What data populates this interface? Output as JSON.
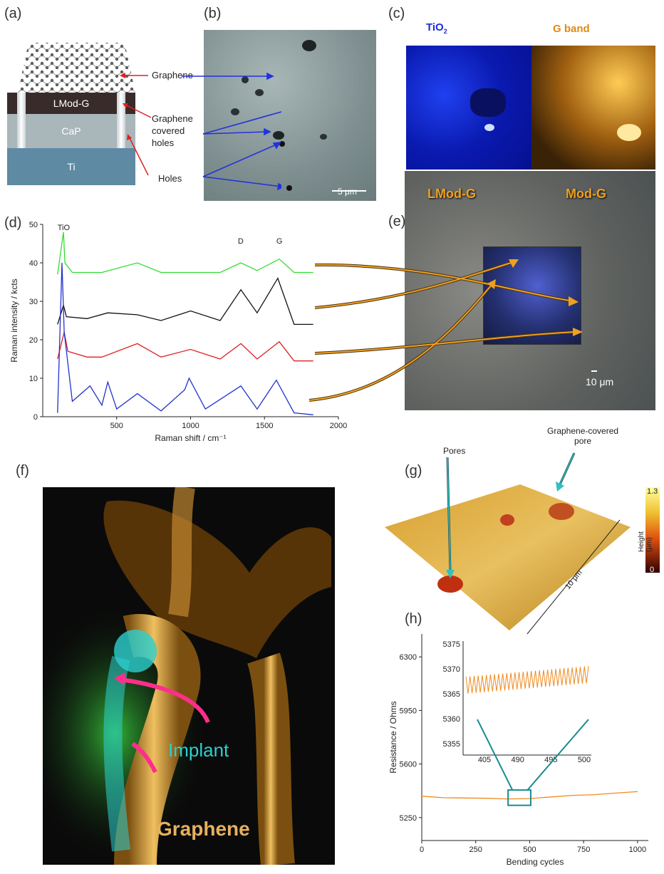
{
  "panels": {
    "a": "(a)",
    "b": "(b)",
    "c": "(c)",
    "d": "(d)",
    "e": "(e)",
    "f": "(f)",
    "g": "(g)",
    "h": "(h)"
  },
  "panel_a": {
    "layers": [
      "LMod-G",
      "CaP",
      "Ti"
    ],
    "callouts": [
      "Graphene",
      "Graphene\ncovered\nholes",
      "Holes"
    ],
    "colors": {
      "lmod": "#3a2b2b",
      "cap": "#a9b6ba",
      "ti": "#5e8aa3",
      "arrow": "#e02020"
    }
  },
  "panel_b": {
    "scale": "5 μm",
    "arrow_color": "#2233dd"
  },
  "panel_c": {
    "left_title": "TiO",
    "left_sub": "2",
    "right_title": "G band",
    "colors": {
      "tio2": "#1a2be0",
      "gband": "#e08a10"
    }
  },
  "panel_e": {
    "left": "LMod-G",
    "right": "Mod-G",
    "scale": "10 μm",
    "arrow_color": "#f0a020"
  },
  "panel_f": {
    "implant": "Implant",
    "graphene": "Graphene"
  },
  "panel_g": {
    "pores": "Pores",
    "covered": "Graphene-covered\npore",
    "scale": "10 μm",
    "cbar_label": "Height (μm)",
    "cbar_max": "1.3",
    "cbar_min": "0"
  },
  "chart_data": [
    {
      "type": "line",
      "panel": "d",
      "xlabel": "Raman shift / cm⁻¹",
      "ylabel": "Raman intensity / kcts",
      "xlim": [
        0,
        2000
      ],
      "ylim": [
        0,
        50
      ],
      "xticks": [
        500,
        1000,
        1500,
        2000
      ],
      "yticks": [
        0,
        10,
        20,
        30,
        40,
        50
      ],
      "annotations": [
        "TiO",
        "D",
        "G"
      ],
      "series": [
        {
          "color": "#33dd33",
          "x": [
            100,
            140,
            150,
            200,
            400,
            640,
            800,
            1000,
            1200,
            1340,
            1450,
            1600,
            1700,
            1830
          ],
          "y": [
            37,
            48,
            40,
            37.5,
            37.5,
            40,
            37.5,
            37.5,
            37.5,
            40,
            38,
            41,
            37.5,
            37.5
          ]
        },
        {
          "color": "#111111",
          "x": [
            100,
            140,
            160,
            300,
            440,
            640,
            800,
            1000,
            1200,
            1340,
            1450,
            1590,
            1700,
            1830
          ],
          "y": [
            24,
            29,
            26,
            25.5,
            27,
            26.5,
            25,
            27.5,
            25,
            33,
            27,
            36,
            24,
            24
          ]
        },
        {
          "color": "#e02020",
          "x": [
            100,
            145,
            170,
            300,
            400,
            640,
            800,
            1000,
            1200,
            1340,
            1450,
            1600,
            1700,
            1830
          ],
          "y": [
            15,
            22,
            17,
            15.5,
            15.5,
            19,
            15.5,
            17.5,
            15,
            19,
            15,
            19.5,
            14.5,
            14.5
          ]
        },
        {
          "color": "#2233cc",
          "x": [
            100,
            130,
            145,
            200,
            320,
            400,
            440,
            500,
            640,
            800,
            960,
            990,
            1100,
            1340,
            1450,
            1580,
            1700,
            1830
          ],
          "y": [
            1,
            40,
            22,
            4,
            8,
            3,
            9,
            2,
            6,
            1.5,
            7,
            10,
            2,
            8,
            2,
            9.5,
            1,
            0.5
          ]
        }
      ]
    },
    {
      "type": "line",
      "panel": "h",
      "xlabel": "Bending cycles",
      "ylabel": "Resistance / Ohms",
      "xlim": [
        0,
        1050
      ],
      "ylim": [
        5100,
        6450
      ],
      "xticks": [
        0,
        250,
        500,
        750,
        1000
      ],
      "yticks": [
        5250,
        5600,
        5950,
        6300
      ],
      "series": [
        {
          "color": "#f08a20",
          "x": [
            0,
            100,
            200,
            300,
            400,
            500,
            600,
            700,
            800,
            900,
            1000
          ],
          "y": [
            5390,
            5380,
            5378,
            5376,
            5372,
            5374,
            5385,
            5395,
            5400,
            5410,
            5420
          ]
        }
      ],
      "inset": {
        "xticks": [
          "405",
          "490",
          "495",
          "500"
        ],
        "yticks": [
          "5375",
          "5370",
          "5365",
          "5360",
          "5355"
        ],
        "xlim": [
          400,
          505
        ],
        "ylim": [
          5350,
          5377
        ],
        "color": "#f08a20"
      }
    }
  ]
}
